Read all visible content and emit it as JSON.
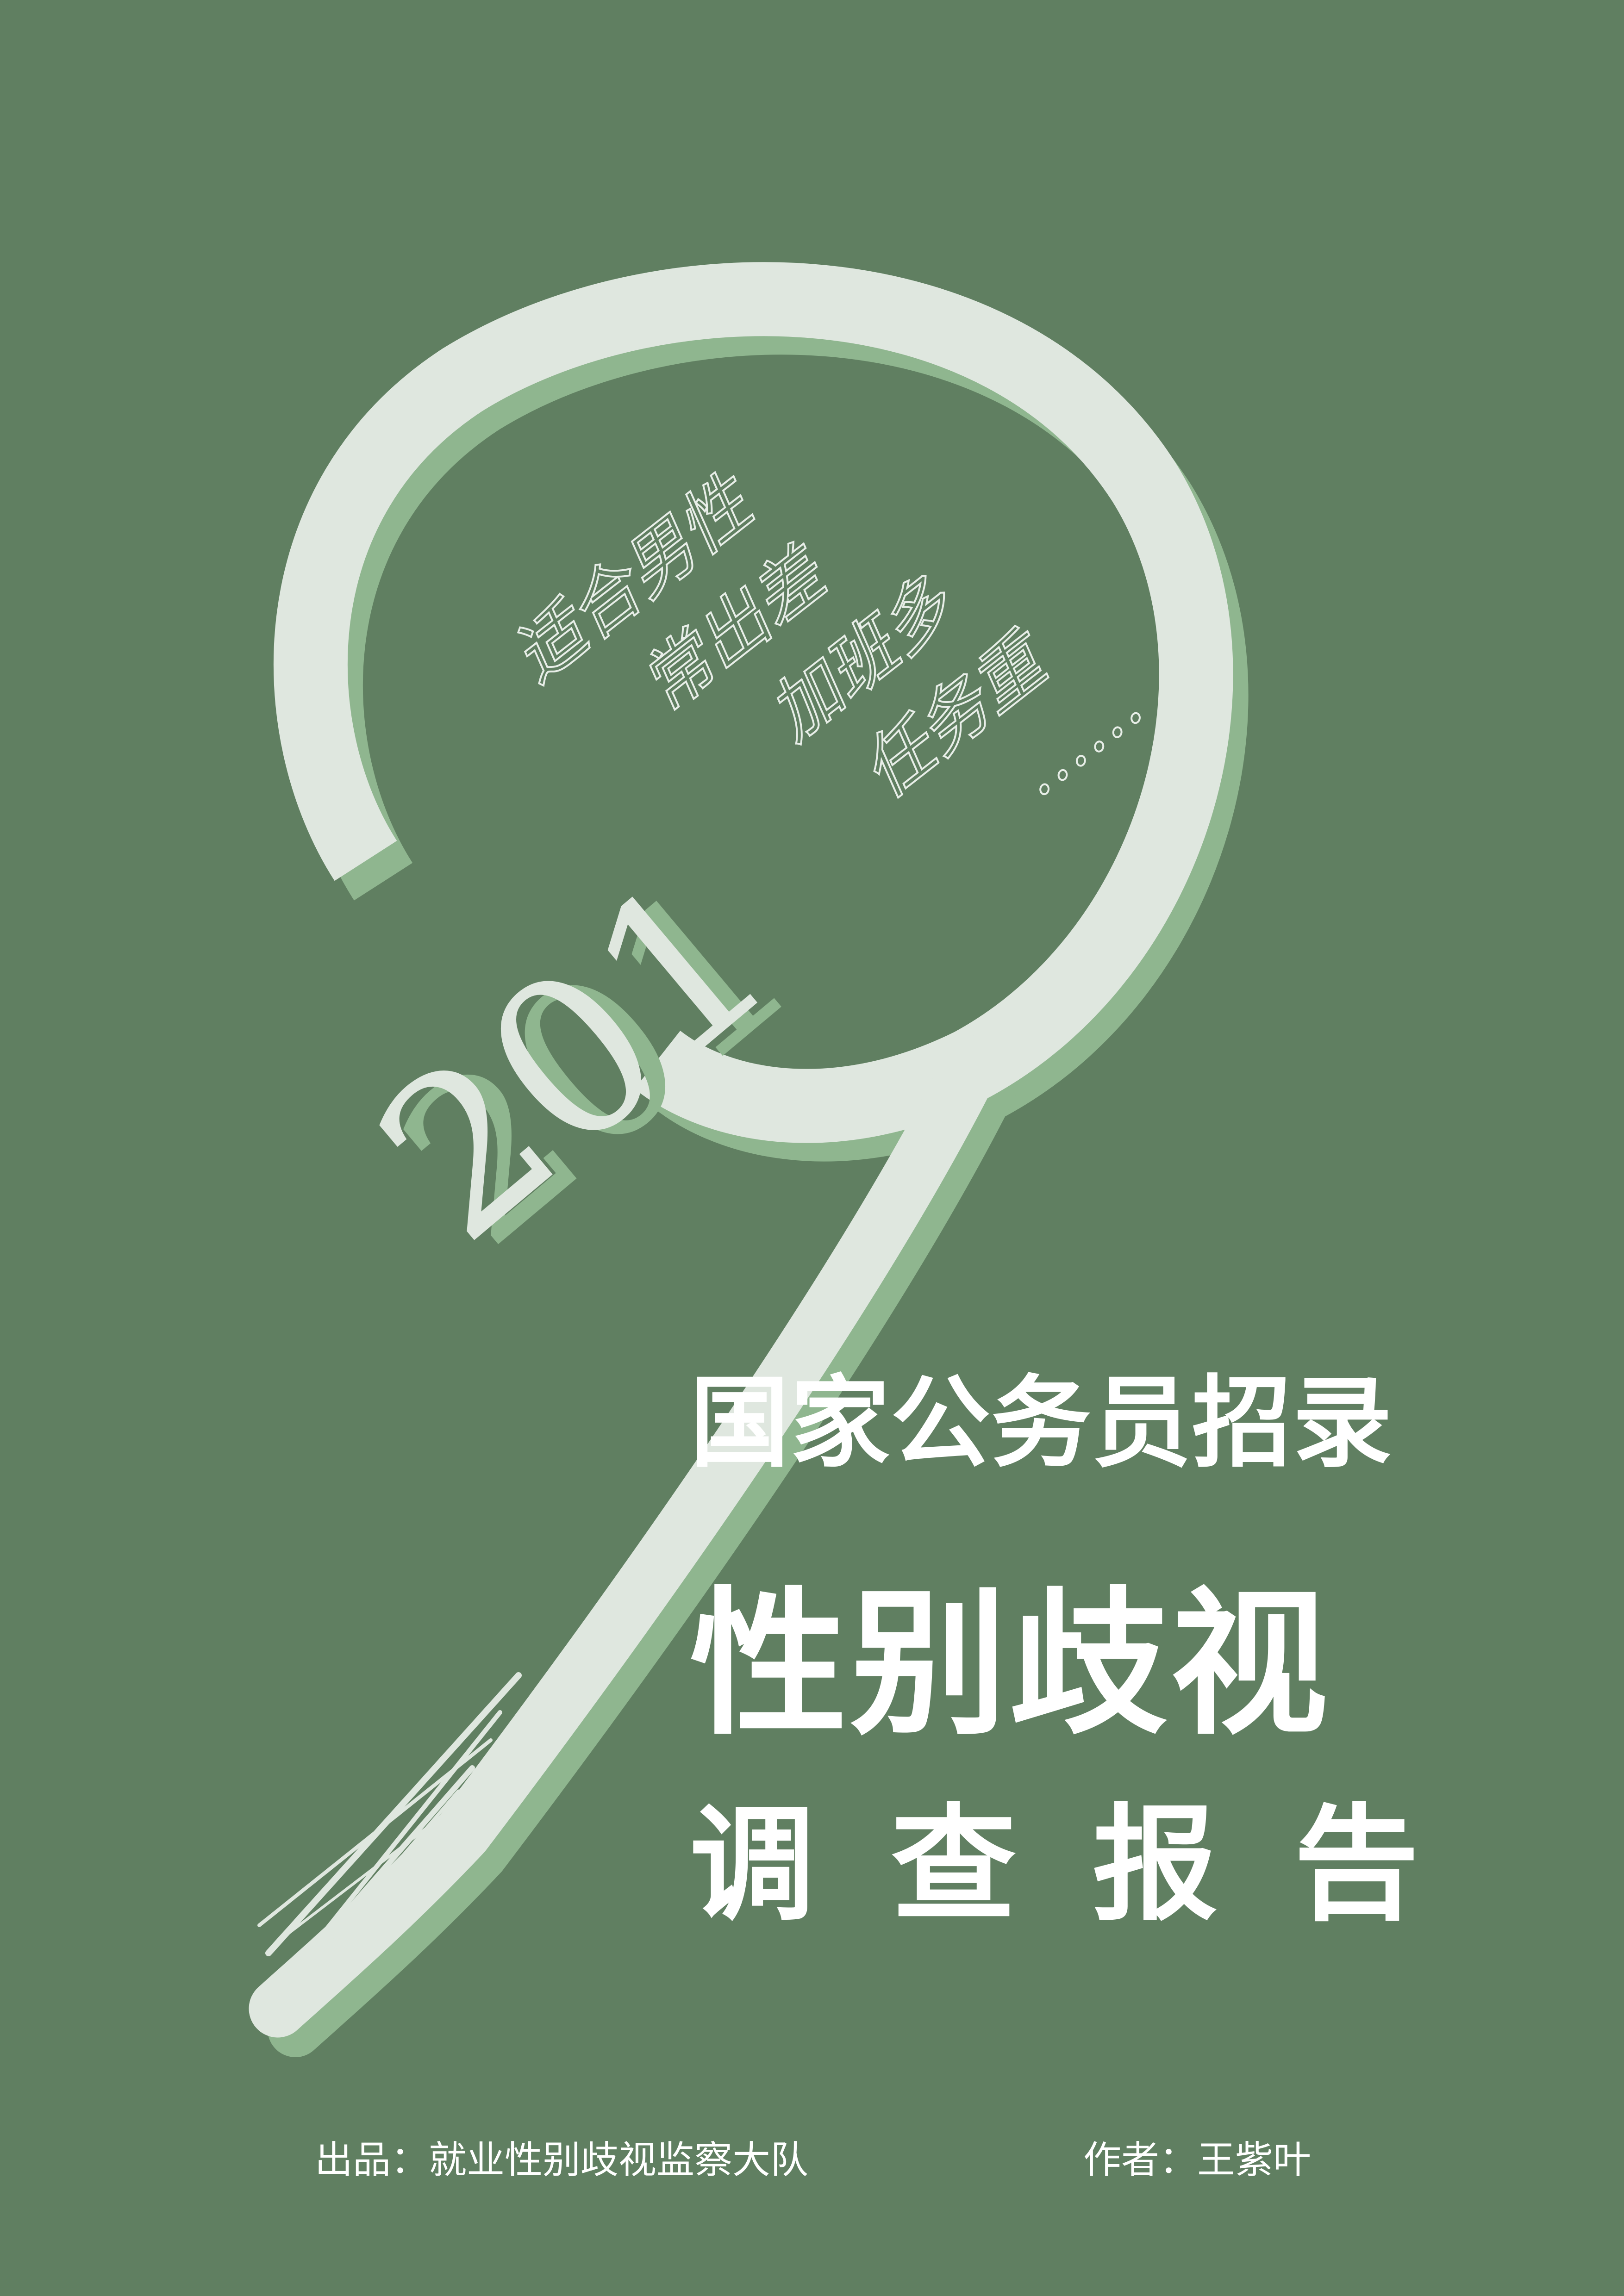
{
  "cover": {
    "year_digits": "201",
    "handwritten_lines": [
      "适合男性",
      "常出差",
      "加班多",
      "任务重",
      "……"
    ],
    "title_line1": "国家公务员招录",
    "title_line2": "性别歧视",
    "title_line3": "调查报告",
    "publisher": "出品：就业性别歧视监察大队",
    "author": "作者：王紫叶"
  },
  "colors": {
    "background": "#607f61",
    "stroke_light": "#dfe7df",
    "stroke_shadow": "#8fb68f",
    "text": "#ffffff"
  }
}
